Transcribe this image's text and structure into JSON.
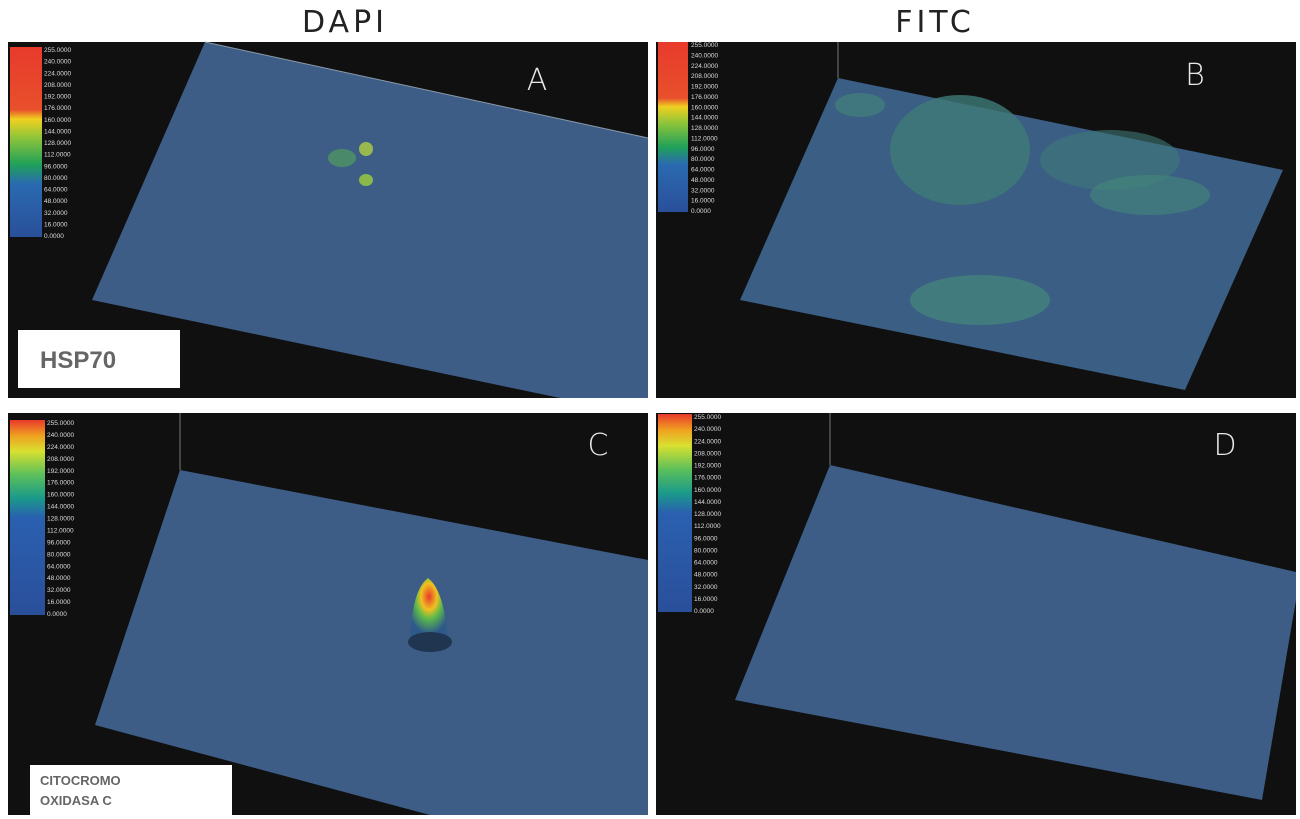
{
  "column_headers": [
    "DAPI",
    "FITC"
  ],
  "panels": [
    {
      "letter": "A",
      "label": [
        "HSP70"
      ]
    },
    {
      "letter": "B"
    },
    {
      "letter": "C",
      "label": [
        "CITOCROMO",
        "OXIDASA C"
      ]
    },
    {
      "letter": "D"
    }
  ],
  "colorbar_labels": [
    "255.0000",
    "240.0000",
    "224.0000",
    "208.0000",
    "192.0000",
    "176.0000",
    "160.0000",
    "144.0000",
    "128.0000",
    "112.0000",
    "96.0000",
    "80.0000",
    "64.0000",
    "48.0000",
    "32.0000",
    "16.0000",
    "0.0000"
  ]
}
